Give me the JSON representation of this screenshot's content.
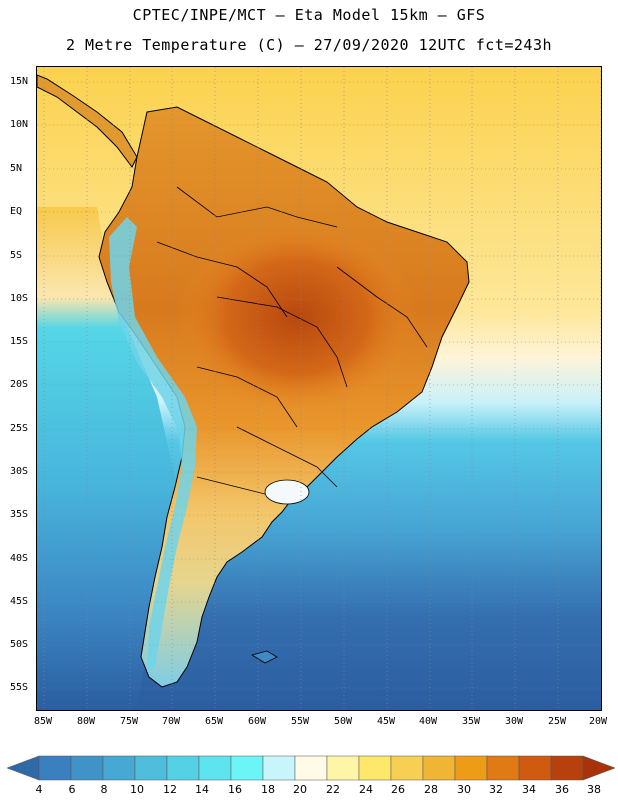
{
  "header": {
    "line1": "CPTEC/INPE/MCT —  Eta Model 15km — GFS",
    "line2": "2 Metre Temperature (C) — 27/09/2020 12UTC fct=243h"
  },
  "axes": {
    "lat_labels": [
      "15N",
      "10N",
      "5N",
      "EQ",
      "5S",
      "10S",
      "15S",
      "20S",
      "25S",
      "30S",
      "35S",
      "40S",
      "45S",
      "50S",
      "55S"
    ],
    "lon_labels": [
      "85W",
      "80W",
      "75W",
      "70W",
      "65W",
      "60W",
      "55W",
      "50W",
      "45W",
      "40W",
      "35W",
      "30W",
      "25W",
      "20W"
    ]
  },
  "colorbar": {
    "labels": [
      "4",
      "6",
      "8",
      "10",
      "12",
      "14",
      "16",
      "18",
      "20",
      "22",
      "24",
      "26",
      "28",
      "30",
      "32",
      "34",
      "36",
      "38"
    ],
    "colors": [
      "#2e6aa8",
      "#3a7fbf",
      "#3f93c9",
      "#48a8d4",
      "#4fbedd",
      "#55d1e6",
      "#5de4ee",
      "#6cf5f7",
      "#c8f4fb",
      "#fffbe6",
      "#fff5a6",
      "#fde86b",
      "#f7cf52",
      "#f0b534",
      "#ee9b18",
      "#e07a14",
      "#cf5a10",
      "#b8400c",
      "#a8330a"
    ]
  },
  "palette": {
    "ocean_deep": "#2e64a6",
    "ocean_mid": "#4aa6d6",
    "ocean_cold": "#55c8e6",
    "ocean_warm": "#fde06a",
    "land_hot": "#c25418",
    "land_warm": "#e98a22",
    "land_mild": "#f3b443",
    "coast": "#000000",
    "grid": "#888888"
  }
}
